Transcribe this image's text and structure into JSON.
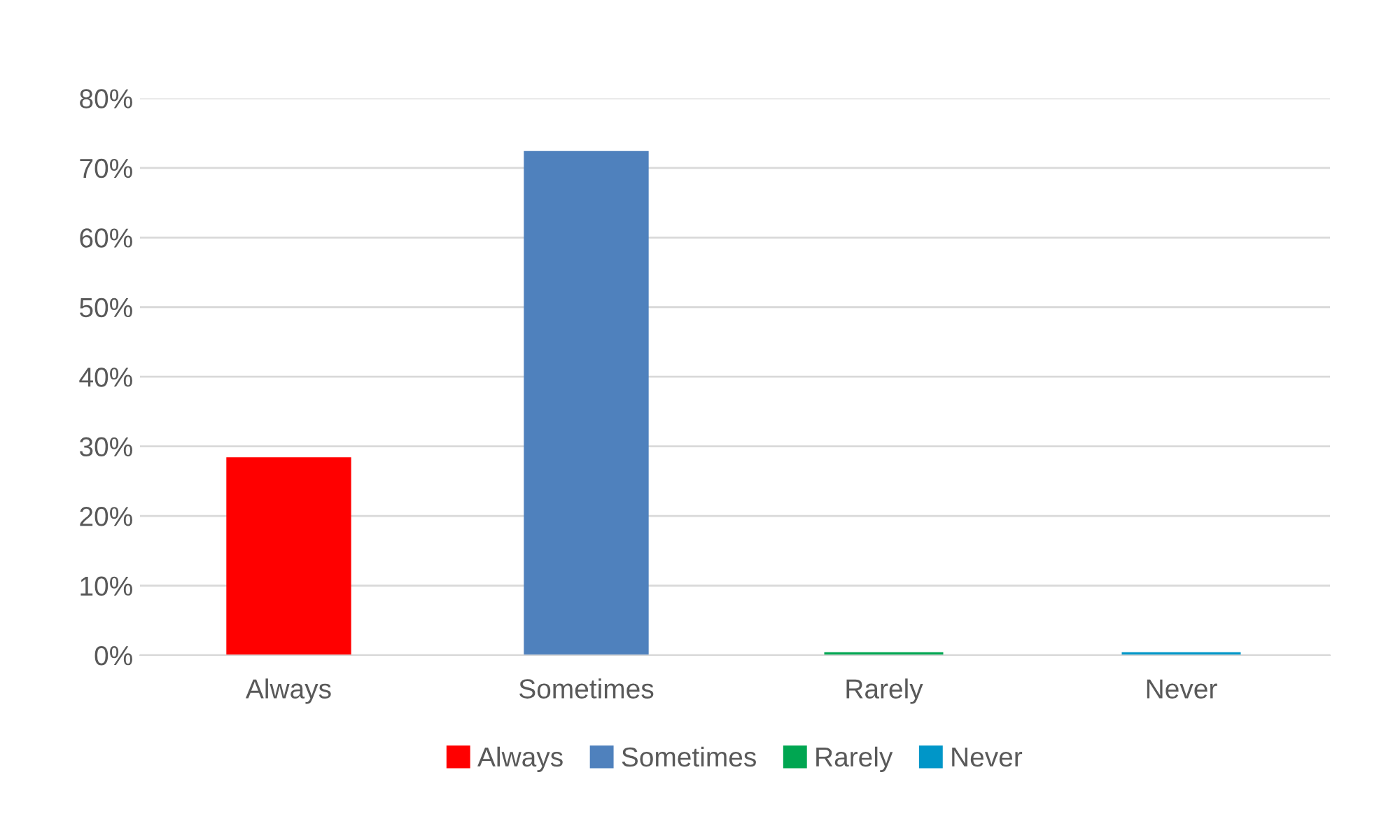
{
  "chart_data": {
    "type": "bar",
    "categories": [
      "Always",
      "Sometimes",
      "Rarely",
      "Never"
    ],
    "series": [
      {
        "name": "Always",
        "color": "#ff0000",
        "values": [
          28,
          null,
          null,
          null
        ]
      },
      {
        "name": "Sometimes",
        "color": "#4f81bd",
        "values": [
          null,
          72,
          null,
          null
        ]
      },
      {
        "name": "Rarely",
        "color": "#00a651",
        "values": [
          null,
          null,
          0,
          null
        ]
      },
      {
        "name": "Never",
        "color": "#0096c8",
        "values": [
          null,
          null,
          null,
          0
        ]
      }
    ],
    "ylim": [
      0,
      80
    ],
    "yticks": [
      {
        "value": 0,
        "label": "0%"
      },
      {
        "value": 10,
        "label": "10%"
      },
      {
        "value": 20,
        "label": "20%"
      },
      {
        "value": 30,
        "label": "30%"
      },
      {
        "value": 40,
        "label": "40%"
      },
      {
        "value": 50,
        "label": "50%"
      },
      {
        "value": 60,
        "label": "60%"
      },
      {
        "value": 70,
        "label": "70%"
      },
      {
        "value": 80,
        "label": "80%"
      }
    ],
    "grid": "y",
    "legend": "bottom"
  }
}
